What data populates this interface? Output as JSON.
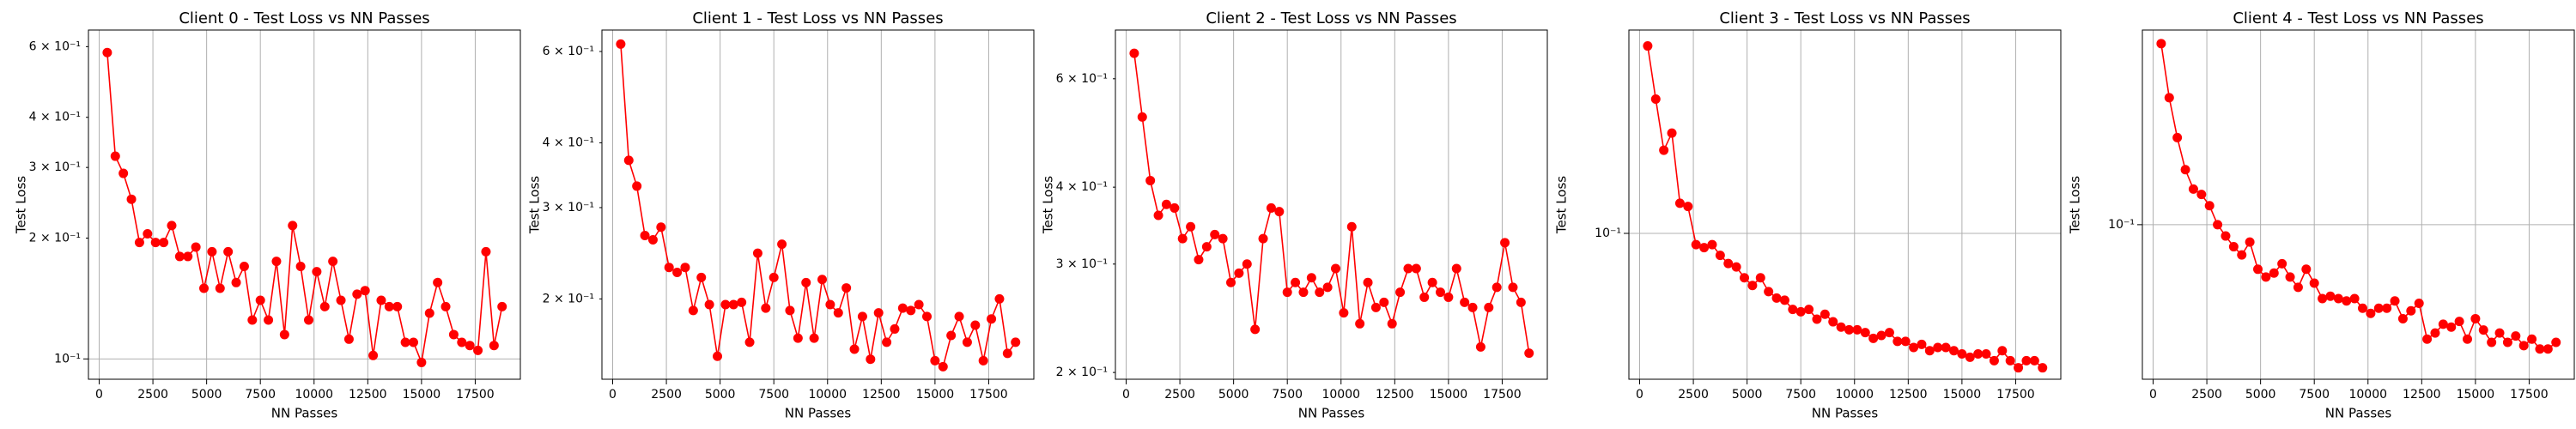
{
  "chart_data": [
    {
      "type": "line",
      "title": "Client 0 - Test Loss vs NN Passes",
      "xlabel": "NN Passes",
      "ylabel": "Test Loss",
      "color": "#ff0000",
      "log_y": true,
      "grid": true,
      "x": [
        375,
        750,
        1125,
        1500,
        1875,
        2250,
        2625,
        3000,
        3375,
        3750,
        4125,
        4500,
        4875,
        5250,
        5625,
        6000,
        6375,
        6750,
        7125,
        7500,
        7875,
        8250,
        8625,
        9000,
        9375,
        9750,
        10125,
        10500,
        10875,
        11250,
        11625,
        12000,
        12375,
        12750,
        13125,
        13500,
        13875,
        14250,
        14625,
        15000,
        15375,
        15750,
        16125,
        16500,
        16875,
        17250,
        17625,
        18000,
        18375,
        18750
      ],
      "values": [
        0.58,
        0.32,
        0.29,
        0.25,
        0.195,
        0.205,
        0.195,
        0.195,
        0.215,
        0.18,
        0.18,
        0.19,
        0.15,
        0.185,
        0.15,
        0.185,
        0.155,
        0.17,
        0.125,
        0.14,
        0.125,
        0.175,
        0.115,
        0.215,
        0.17,
        0.125,
        0.165,
        0.135,
        0.175,
        0.14,
        0.112,
        0.145,
        0.148,
        0.102,
        0.14,
        0.135,
        0.135,
        0.11,
        0.11,
        0.098,
        0.13,
        0.155,
        0.135,
        0.115,
        0.11,
        0.108,
        0.105,
        0.185,
        0.108,
        0.135
      ],
      "xlim": [
        -500,
        19600
      ],
      "xticks": [
        0,
        2500,
        5000,
        7500,
        10000,
        12500,
        15000,
        17500
      ],
      "ylim": [
        0.089,
        0.66
      ],
      "yticks": [
        {
          "value": 0.1,
          "label": "10⁻¹"
        },
        {
          "value": 0.2,
          "label": "2 × 10⁻¹"
        },
        {
          "value": 0.3,
          "label": "3 × 10⁻¹"
        },
        {
          "value": 0.4,
          "label": "4 × 10⁻¹"
        },
        {
          "value": 0.6,
          "label": "6 × 10⁻¹"
        }
      ]
    },
    {
      "type": "line",
      "title": "Client 1 - Test Loss vs NN Passes",
      "xlabel": "NN Passes",
      "ylabel": "Test Loss",
      "color": "#ff0000",
      "log_y": true,
      "grid": true,
      "x": [
        375,
        750,
        1125,
        1500,
        1875,
        2250,
        2625,
        3000,
        3375,
        3750,
        4125,
        4500,
        4875,
        5250,
        5625,
        6000,
        6375,
        6750,
        7125,
        7500,
        7875,
        8250,
        8625,
        9000,
        9375,
        9750,
        10125,
        10500,
        10875,
        11250,
        11625,
        12000,
        12375,
        12750,
        13125,
        13500,
        13875,
        14250,
        14625,
        15000,
        15375,
        15750,
        16125,
        16500,
        16875,
        17250,
        17625,
        18000,
        18375,
        18750
      ],
      "values": [
        0.62,
        0.37,
        0.33,
        0.265,
        0.26,
        0.275,
        0.23,
        0.225,
        0.23,
        0.19,
        0.22,
        0.195,
        0.155,
        0.195,
        0.195,
        0.197,
        0.165,
        0.245,
        0.192,
        0.22,
        0.255,
        0.19,
        0.168,
        0.215,
        0.168,
        0.218,
        0.195,
        0.188,
        0.21,
        0.16,
        0.185,
        0.153,
        0.188,
        0.165,
        0.175,
        0.192,
        0.19,
        0.195,
        0.185,
        0.152,
        0.148,
        0.17,
        0.185,
        0.165,
        0.178,
        0.152,
        0.183,
        0.2,
        0.157,
        0.165
      ],
      "xlim": [
        -500,
        19600
      ],
      "xticks": [
        0,
        2500,
        5000,
        7500,
        10000,
        12500,
        15000,
        17500
      ],
      "ylim": [
        0.14,
        0.66
      ],
      "yticks": [
        {
          "value": 0.2,
          "label": "2 × 10⁻¹"
        },
        {
          "value": 0.3,
          "label": "3 × 10⁻¹"
        },
        {
          "value": 0.4,
          "label": "4 × 10⁻¹"
        },
        {
          "value": 0.6,
          "label": "6 × 10⁻¹"
        }
      ]
    },
    {
      "type": "line",
      "title": "Client 2 - Test Loss vs NN Passes",
      "xlabel": "NN Passes",
      "ylabel": "Test Loss",
      "color": "#ff0000",
      "log_y": true,
      "grid": true,
      "x": [
        375,
        750,
        1125,
        1500,
        1875,
        2250,
        2625,
        3000,
        3375,
        3750,
        4125,
        4500,
        4875,
        5250,
        5625,
        6000,
        6375,
        6750,
        7125,
        7500,
        7875,
        8250,
        8625,
        9000,
        9375,
        9750,
        10125,
        10500,
        10875,
        11250,
        11625,
        12000,
        12375,
        12750,
        13125,
        13500,
        13875,
        14250,
        14625,
        15000,
        15375,
        15750,
        16125,
        16500,
        16875,
        17250,
        17625,
        18000,
        18375,
        18750
      ],
      "values": [
        0.66,
        0.52,
        0.41,
        0.36,
        0.375,
        0.37,
        0.33,
        0.345,
        0.305,
        0.32,
        0.335,
        0.33,
        0.28,
        0.29,
        0.3,
        0.235,
        0.33,
        0.37,
        0.365,
        0.27,
        0.28,
        0.27,
        0.285,
        0.27,
        0.275,
        0.295,
        0.25,
        0.345,
        0.24,
        0.28,
        0.255,
        0.26,
        0.24,
        0.27,
        0.295,
        0.295,
        0.265,
        0.28,
        0.27,
        0.265,
        0.295,
        0.26,
        0.255,
        0.22,
        0.255,
        0.275,
        0.325,
        0.275,
        0.26,
        0.215
      ],
      "xlim": [
        -500,
        19600
      ],
      "xticks": [
        0,
        2500,
        5000,
        7500,
        10000,
        12500,
        15000,
        17500
      ],
      "ylim": [
        0.195,
        0.72
      ],
      "yticks": [
        {
          "value": 0.2,
          "label": "2 × 10⁻¹"
        },
        {
          "value": 0.3,
          "label": "3 × 10⁻¹"
        },
        {
          "value": 0.4,
          "label": "4 × 10⁻¹"
        },
        {
          "value": 0.6,
          "label": "6 × 10⁻¹"
        }
      ]
    },
    {
      "type": "line",
      "title": "Client 3 - Test Loss vs NN Passes",
      "xlabel": "NN Passes",
      "ylabel": "Test Loss",
      "color": "#ff0000",
      "log_y": true,
      "grid": true,
      "x": [
        375,
        750,
        1125,
        1500,
        1875,
        2250,
        2625,
        3000,
        3375,
        3750,
        4125,
        4500,
        4875,
        5250,
        5625,
        6000,
        6375,
        6750,
        7125,
        7500,
        7875,
        8250,
        8625,
        9000,
        9375,
        9750,
        10125,
        10500,
        10875,
        11250,
        11625,
        12000,
        12375,
        12750,
        13125,
        13500,
        13875,
        14250,
        14625,
        15000,
        15375,
        15750,
        16125,
        16500,
        16875,
        17250,
        17625,
        18000,
        18375,
        18750
      ],
      "values": [
        0.4,
        0.27,
        0.185,
        0.21,
        0.125,
        0.122,
        0.092,
        0.09,
        0.092,
        0.085,
        0.08,
        0.078,
        0.072,
        0.068,
        0.072,
        0.065,
        0.062,
        0.061,
        0.057,
        0.056,
        0.057,
        0.053,
        0.055,
        0.052,
        0.05,
        0.049,
        0.049,
        0.048,
        0.046,
        0.047,
        0.048,
        0.045,
        0.045,
        0.043,
        0.044,
        0.042,
        0.043,
        0.043,
        0.042,
        0.041,
        0.04,
        0.041,
        0.041,
        0.039,
        0.042,
        0.039,
        0.037,
        0.039,
        0.039,
        0.037
      ],
      "xlim": [
        -500,
        19600
      ],
      "xticks": [
        0,
        2500,
        5000,
        7500,
        10000,
        12500,
        15000,
        17500
      ],
      "ylim": [
        0.034,
        0.45
      ],
      "yticks": [
        {
          "value": 0.1,
          "label": "10⁻¹"
        }
      ]
    },
    {
      "type": "line",
      "title": "Client 4 - Test Loss vs NN Passes",
      "xlabel": "NN Passes",
      "ylabel": "Test Loss",
      "color": "#ff0000",
      "log_y": true,
      "grid": true,
      "x": [
        375,
        750,
        1125,
        1500,
        1875,
        2250,
        2625,
        3000,
        3375,
        3750,
        4125,
        4500,
        4875,
        5250,
        5625,
        6000,
        6375,
        6750,
        7125,
        7500,
        7875,
        8250,
        8625,
        9000,
        9375,
        9750,
        10125,
        10500,
        10875,
        11250,
        11625,
        12000,
        12375,
        12750,
        13125,
        13500,
        13875,
        14250,
        14625,
        15000,
        15375,
        15750,
        16125,
        16500,
        16875,
        17250,
        17625,
        18000,
        18375,
        18750
      ],
      "values": [
        0.38,
        0.255,
        0.19,
        0.15,
        0.13,
        0.125,
        0.115,
        0.1,
        0.092,
        0.085,
        0.08,
        0.088,
        0.072,
        0.068,
        0.07,
        0.075,
        0.068,
        0.063,
        0.072,
        0.065,
        0.058,
        0.059,
        0.058,
        0.057,
        0.058,
        0.054,
        0.052,
        0.054,
        0.054,
        0.057,
        0.05,
        0.053,
        0.056,
        0.043,
        0.045,
        0.048,
        0.047,
        0.049,
        0.043,
        0.05,
        0.046,
        0.042,
        0.045,
        0.042,
        0.044,
        0.041,
        0.043,
        0.04,
        0.04,
        0.042
      ],
      "xlim": [
        -500,
        19600
      ],
      "xticks": [
        0,
        2500,
        5000,
        7500,
        10000,
        12500,
        15000,
        17500
      ],
      "ylim": [
        0.032,
        0.42
      ],
      "yticks": [
        {
          "value": 0.1,
          "label": "10⁻¹"
        }
      ]
    }
  ]
}
